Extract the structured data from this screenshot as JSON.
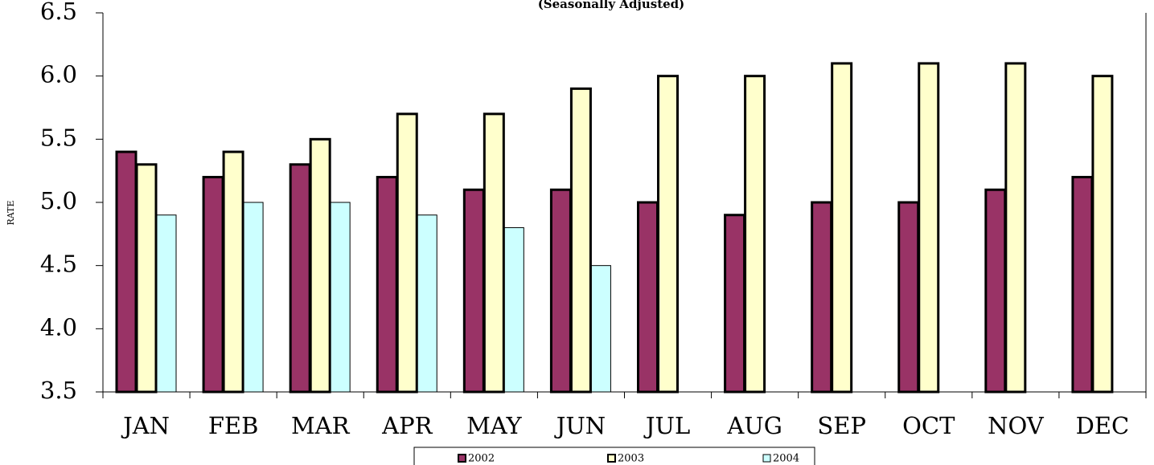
{
  "chart_data": {
    "type": "bar",
    "subtitle": "(Seasonally Adjusted)",
    "y_label": "RATE",
    "categories": [
      "JAN",
      "FEB",
      "MAR",
      "APR",
      "MAY",
      "JUN",
      "JUL",
      "AUG",
      "SEP",
      "OCT",
      "NOV",
      "DEC"
    ],
    "series": [
      {
        "name": "2002",
        "color": "#993366",
        "values": [
          5.4,
          5.2,
          5.3,
          5.2,
          5.1,
          5.1,
          5.0,
          4.9,
          5.0,
          5.0,
          5.1,
          5.2
        ]
      },
      {
        "name": "2003",
        "color": "#ffffcc",
        "values": [
          5.3,
          5.4,
          5.5,
          5.7,
          5.7,
          5.9,
          6.0,
          6.0,
          6.1,
          6.1,
          6.1,
          6.0
        ]
      },
      {
        "name": "2004",
        "color": "#ccffff",
        "values": [
          4.9,
          5.0,
          5.0,
          4.9,
          4.8,
          4.5,
          null,
          null,
          null,
          null,
          null,
          null
        ]
      }
    ],
    "ylim": [
      3.5,
      6.5
    ],
    "yticks": [
      3.5,
      {
        "value": 4.0,
        "label": "4.0"
      },
      4.5,
      {
        "value": 5.0,
        "label": "5.0"
      },
      5.5,
      {
        "value": 6.0,
        "label": "6.0"
      },
      6.5
    ],
    "legend": "bottom"
  }
}
